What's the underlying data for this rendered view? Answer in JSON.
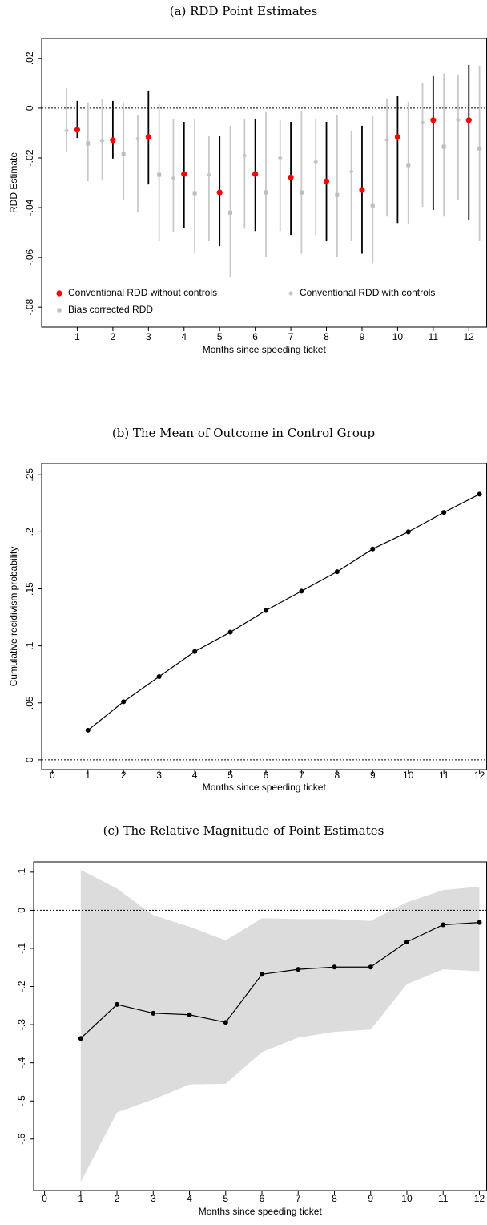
{
  "chart_data": [
    {
      "type": "errorbar",
      "title": "(a) RDD Point Estimates",
      "x_label": "Months since speeding ticket",
      "y_label": "RDD Estimate",
      "x": [
        1,
        2,
        3,
        4,
        5,
        6,
        7,
        8,
        9,
        10,
        11,
        12
      ],
      "series": [
        {
          "name": "Conventional RDD without controls",
          "color": "#ff0000",
          "marker": "circle",
          "ci_color": "#000000",
          "values": [
            -0.0087,
            -0.0129,
            -0.0116,
            -0.0265,
            -0.0339,
            -0.0265,
            -0.0278,
            -0.0294,
            -0.0329,
            -0.0116,
            -0.0048,
            -0.0048
          ],
          "ci_low": [
            -0.012,
            -0.0203,
            -0.0307,
            -0.0481,
            -0.0555,
            -0.0494,
            -0.051,
            -0.0533,
            -0.0585,
            -0.0462,
            -0.041,
            -0.0452
          ],
          "ci_high": [
            0.0029,
            0.0029,
            0.0071,
            -0.0055,
            -0.0113,
            -0.0042,
            -0.0055,
            -0.0055,
            -0.0071,
            0.0048,
            0.0129,
            0.0174
          ]
        },
        {
          "name": "Conventional RDD with controls",
          "color": "#c4c4c4",
          "marker": "diamond",
          "ci_color": "#c8c8c8",
          "values": [
            -0.009,
            -0.0132,
            -0.0123,
            -0.0281,
            -0.0268,
            -0.0191,
            -0.02,
            -0.0216,
            -0.0255,
            -0.0129,
            -0.0058,
            -0.0048
          ],
          "ci_low": [
            -0.0178,
            -0.0291,
            -0.042,
            -0.05,
            -0.0533,
            -0.0485,
            -0.0494,
            -0.051,
            -0.0533,
            -0.0436,
            -0.0397,
            -0.0371
          ],
          "ci_high": [
            0.0081,
            0.0036,
            -0.0026,
            -0.0045,
            -0.0113,
            -0.0042,
            -0.0048,
            -0.0042,
            -0.009,
            0.0039,
            0.0103,
            0.0136
          ]
        },
        {
          "name": "Bias corrected RDD",
          "color": "#bdbdbd",
          "marker": "square",
          "ci_color": "#c8c8c8",
          "values": [
            -0.0142,
            -0.0184,
            -0.0268,
            -0.0342,
            -0.042,
            -0.0339,
            -0.0339,
            -0.0349,
            -0.0391,
            -0.0229,
            -0.0155,
            -0.0162
          ],
          "ci_low": [
            -0.0294,
            -0.0371,
            -0.0533,
            -0.0581,
            -0.0681,
            -0.0597,
            -0.0585,
            -0.0597,
            -0.0623,
            -0.0468,
            -0.0436,
            -0.0533
          ],
          "ci_high": [
            0.0023,
            0.0023,
            0.0016,
            -0.0045,
            -0.0071,
            -0.0016,
            -0.001,
            -0.0029,
            -0.0032,
            0.0026,
            0.0139,
            0.0171
          ]
        }
      ],
      "xlim": [
        0,
        12.5
      ],
      "xticks": [
        1,
        2,
        3,
        4,
        5,
        6,
        7,
        8,
        9,
        10,
        11,
        12
      ],
      "ylim": [
        -0.088,
        0.028
      ],
      "yticks": [
        {
          "value": -0.08,
          "label": "-.08"
        },
        {
          "value": -0.06,
          "label": "-.06"
        },
        {
          "value": -0.04,
          "label": "-.04"
        },
        {
          "value": -0.02,
          "label": "-.02"
        },
        0,
        {
          "value": 0.02,
          "label": ".02"
        }
      ],
      "hline": 0,
      "legend": "bottom"
    },
    {
      "type": "line",
      "title": "(b) The Mean of Outcome in Control Group",
      "x_label": "Months since speeding ticket",
      "y_label": "Cumulative recidivism probability",
      "x": [
        1,
        2,
        3,
        4,
        5,
        6,
        7,
        8,
        9,
        10,
        11,
        12
      ],
      "series": [
        {
          "color": "#000000",
          "values": [
            0.026,
            0.051,
            0.073,
            0.095,
            0.112,
            0.131,
            0.148,
            0.165,
            0.185,
            0.2,
            0.217,
            0.233
          ]
        }
      ],
      "xlim": [
        -0.3,
        12.2
      ],
      "xticks": [
        0,
        1,
        2,
        3,
        4,
        5,
        6,
        7,
        8,
        9,
        10,
        11,
        12
      ],
      "ylim": [
        -0.0085,
        0.26
      ],
      "yticks": [
        0,
        {
          "value": 0.05,
          "label": ".05"
        },
        {
          "value": 0.1,
          "label": ".1"
        },
        {
          "value": 0.15,
          "label": ".15"
        },
        {
          "value": 0.2,
          "label": ".2"
        },
        {
          "value": 0.25,
          "label": ".25"
        }
      ],
      "hline": 0
    },
    {
      "type": "line",
      "title": "(c) The Relative Magnitude of Point Estimates",
      "x_label": "Months since speeding ticket",
      "x": [
        1,
        2,
        3,
        4,
        5,
        6,
        7,
        8,
        9,
        10,
        11,
        12
      ],
      "series": [
        {
          "color": "#000000",
          "band_color": "#dcdcdc",
          "values": [
            -0.336,
            -0.247,
            -0.27,
            -0.274,
            -0.294,
            -0.168,
            -0.155,
            -0.149,
            -0.149,
            -0.083,
            -0.038,
            -0.032
          ],
          "ci_low": [
            -0.713,
            -0.53,
            -0.496,
            -0.457,
            -0.455,
            -0.372,
            -0.334,
            -0.319,
            -0.313,
            -0.194,
            -0.155,
            -0.16
          ],
          "ci_high": [
            0.106,
            0.057,
            -0.013,
            -0.043,
            -0.079,
            -0.021,
            -0.023,
            -0.023,
            -0.028,
            0.021,
            0.053,
            0.062
          ]
        }
      ],
      "xlim": [
        -0.3,
        12.2
      ],
      "xticks": [
        0,
        1,
        2,
        3,
        4,
        5,
        6,
        7,
        8,
        9,
        10,
        11,
        12
      ],
      "ylim": [
        -0.735,
        0.127
      ],
      "yticks": [
        {
          "value": -0.6,
          "label": "-.6"
        },
        {
          "value": -0.5,
          "label": "-.5"
        },
        {
          "value": -0.4,
          "label": "-.4"
        },
        {
          "value": -0.3,
          "label": "-.3"
        },
        {
          "value": -0.2,
          "label": "-.2"
        },
        {
          "value": -0.1,
          "label": "-.1"
        },
        0,
        {
          "value": 0.1,
          "label": ".1"
        }
      ],
      "hline": 0
    }
  ]
}
